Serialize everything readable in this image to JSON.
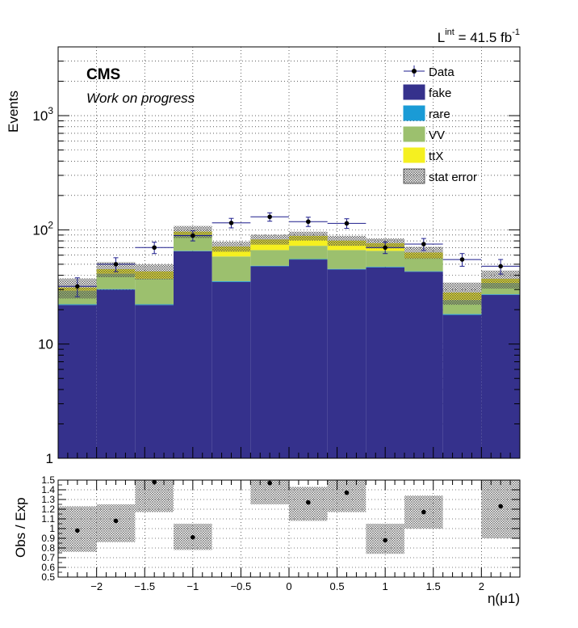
{
  "header": {
    "lumi_prefix": "L",
    "lumi_sup": "int",
    "lumi_value": " = 41.5 fb",
    "lumi_unit_sup": "-1"
  },
  "labels": {
    "cms": "CMS",
    "subtitle": "Work on progress"
  },
  "legend": {
    "data": "Data",
    "fake": "fake",
    "rare": "rare",
    "vv": "VV",
    "ttx": "ttX",
    "stat": "stat error"
  },
  "colors": {
    "fake": "#35318c",
    "rare": "#1a9bd6",
    "vv": "#9cc06e",
    "ttx": "#f5f020",
    "data": "#000000",
    "err_bar": "#1c1c8c"
  },
  "chart_data": [
    {
      "type": "bar",
      "stacked": true,
      "yscale": "log",
      "ylabel": "Events",
      "xlabel": "η(μ1)",
      "xlim": [
        -2.4,
        2.4
      ],
      "ylim": [
        1,
        4000
      ],
      "ytick_labels": [
        "1",
        "10",
        "10",
        "10"
      ],
      "ytick_sup": [
        "",
        "",
        "2",
        "3"
      ],
      "bin_edges": [
        -2.4,
        -2.0,
        -1.6,
        -1.2,
        -0.8,
        -0.4,
        0.0,
        0.4,
        0.8,
        1.2,
        1.6,
        2.0,
        2.4
      ],
      "series": [
        {
          "name": "fake",
          "values": [
            22,
            30,
            22,
            65,
            35,
            48,
            55,
            45,
            47,
            43,
            18,
            27
          ]
        },
        {
          "name": "rare",
          "values": [
            0.3,
            0.3,
            0.3,
            0.5,
            0.5,
            0.5,
            0.5,
            0.5,
            0.5,
            0.4,
            0.3,
            0.3
          ]
        },
        {
          "name": "VV",
          "values": [
            7,
            11,
            15,
            25,
            23,
            18,
            17,
            21,
            18,
            13,
            6,
            7
          ]
        },
        {
          "name": "ttX",
          "values": [
            2,
            4,
            6,
            6,
            13,
            16,
            16,
            14,
            11,
            7,
            4,
            3
          ]
        }
      ],
      "stat_error_rel": [
        0.2,
        0.15,
        0.15,
        0.12,
        0.1,
        0.1,
        0.09,
        0.1,
        0.1,
        0.12,
        0.22,
        0.18
      ],
      "data": {
        "x": [
          -2.2,
          -1.8,
          -1.4,
          -1.0,
          -0.6,
          -0.2,
          0.2,
          0.6,
          1.0,
          1.4,
          1.8,
          2.2
        ],
        "y": [
          32,
          50,
          70,
          89,
          115,
          130,
          118,
          114,
          70,
          75,
          55,
          48
        ],
        "yerr": [
          6,
          7,
          8,
          9,
          11,
          11,
          11,
          11,
          8,
          9,
          7,
          7
        ]
      }
    },
    {
      "type": "scatter",
      "ylabel": "Obs / Exp",
      "xlabel": "η(μ1)",
      "xlim": [
        -2.4,
        2.4
      ],
      "ylim": [
        0.5,
        1.5
      ],
      "xticks": [
        -2,
        -1.5,
        -1,
        -0.5,
        0,
        0.5,
        1,
        1.5,
        2
      ],
      "xtick_labels": [
        "−2",
        "−1.5",
        "−1",
        "−0.5",
        "0",
        "0.5",
        "1",
        "1.5",
        "2"
      ],
      "yticks": [
        0.5,
        0.6,
        0.7,
        0.8,
        0.9,
        1.0,
        1.1,
        1.2,
        1.3,
        1.4,
        1.5
      ],
      "ytick_labels": [
        "0.5",
        "0.6",
        "0.7",
        "0.8",
        "0.9",
        "1",
        "1.1",
        "1.2",
        "1.3",
        "1.4",
        "1.5"
      ],
      "x": [
        -2.2,
        -1.8,
        -1.4,
        -1.0,
        -0.6,
        -0.2,
        0.2,
        0.6,
        1.0,
        1.4,
        1.8,
        2.2
      ],
      "y": [
        0.98,
        1.08,
        1.48,
        0.91,
        null,
        1.47,
        1.27,
        1.37,
        0.88,
        1.17,
        null,
        1.23
      ],
      "band_low": [
        0.76,
        0.86,
        1.17,
        0.78,
        null,
        1.25,
        1.08,
        1.17,
        0.74,
        1.0,
        null,
        0.9
      ],
      "band_high": [
        1.23,
        1.25,
        1.5,
        1.05,
        null,
        1.5,
        1.43,
        1.5,
        1.05,
        1.34,
        null,
        1.5
      ]
    }
  ]
}
